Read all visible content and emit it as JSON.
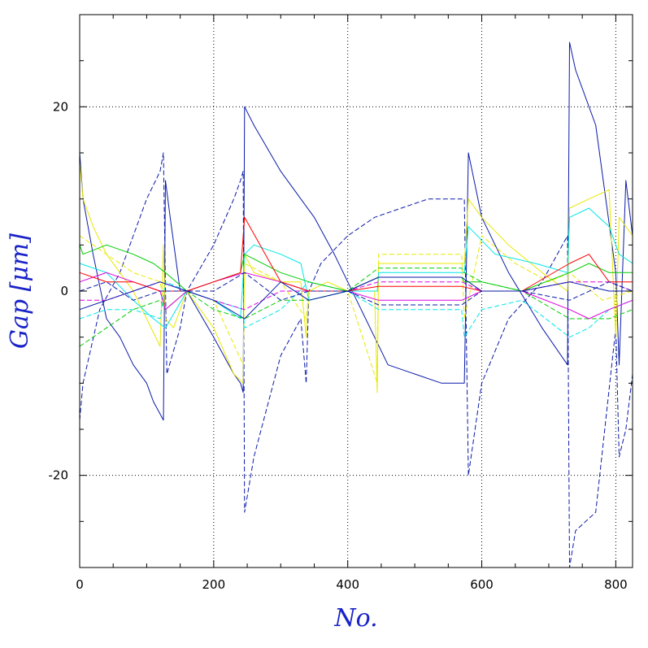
{
  "chart_data": {
    "type": "line",
    "xlabel": "No.",
    "ylabel": "Gap [μm]",
    "xlim": [
      0,
      825
    ],
    "ylim": [
      -30,
      30
    ],
    "x_ticks": [
      0,
      200,
      400,
      600,
      800
    ],
    "y_ticks": [
      -20,
      0,
      20
    ],
    "x_tick_labels": [
      "0",
      "200",
      "400",
      "600",
      "800"
    ],
    "y_tick_labels": [
      "-20",
      "0",
      "20"
    ],
    "grid": true,
    "legend": "none",
    "series": [
      {
        "color": "#0a1aa8",
        "style": "solid",
        "x": [
          0,
          5,
          20,
          40,
          60,
          80,
          100,
          110,
          125,
          128,
          135,
          150,
          160,
          200,
          230,
          240,
          244,
          246,
          260,
          300,
          330,
          350,
          380,
          420,
          460,
          500,
          540,
          570,
          574,
          580,
          600,
          640,
          690,
          728,
          731,
          740,
          770,
          800,
          805,
          815,
          825
        ],
        "y": [
          15,
          10,
          4,
          -3,
          -5,
          -8,
          -10,
          -12,
          -14,
          12,
          8,
          0,
          0,
          -5,
          -9,
          -10,
          -11,
          20,
          18,
          13,
          10,
          8,
          4,
          -2,
          -8,
          -9,
          -10,
          -10,
          -10,
          15,
          8,
          2,
          -4,
          -8,
          27,
          24,
          18,
          2,
          -8,
          12,
          6
        ]
      },
      {
        "color": "#0a1aa8",
        "style": "dashed",
        "x": [
          0,
          5,
          30,
          60,
          80,
          100,
          120,
          125,
          130,
          150,
          160,
          200,
          230,
          240,
          244,
          246,
          260,
          300,
          330,
          338,
          342,
          360,
          400,
          440,
          480,
          520,
          560,
          570,
          574,
          580,
          600,
          640,
          690,
          728,
          731,
          740,
          770,
          800,
          805,
          815,
          825
        ],
        "y": [
          -14,
          -10,
          -2,
          2,
          6,
          10,
          13,
          15,
          -9,
          -4,
          0,
          5,
          10,
          12,
          13,
          -24,
          -18,
          -7,
          -3,
          -10,
          0,
          3,
          6,
          8,
          9,
          10,
          10,
          10,
          10,
          -20,
          -10,
          -3,
          1,
          6,
          -30,
          -26,
          -24,
          -4,
          -18,
          -15,
          -9
        ]
      },
      {
        "color": "#e8e800",
        "style": "solid",
        "x": [
          0,
          5,
          20,
          40,
          60,
          80,
          100,
          120,
          125,
          128,
          140,
          160,
          200,
          230,
          244,
          246,
          260,
          300,
          330,
          338,
          342,
          370,
          400,
          440,
          444,
          446,
          480,
          520,
          570,
          574,
          580,
          600,
          640,
          690,
          728,
          731,
          760,
          790,
          800,
          805,
          825
        ],
        "y": [
          14,
          10,
          7,
          4,
          2,
          0,
          -3,
          -6,
          5,
          -3,
          -4,
          0,
          -4,
          -9,
          -10,
          4,
          2,
          1,
          1,
          -5,
          0,
          1,
          0,
          0,
          -11,
          3,
          3,
          3,
          3,
          3,
          10,
          8,
          5,
          2,
          0,
          9,
          10,
          11,
          -5,
          8,
          6
        ]
      },
      {
        "color": "#e8e800",
        "style": "dashed",
        "x": [
          0,
          40,
          80,
          120,
          128,
          160,
          200,
          244,
          246,
          300,
          338,
          342,
          400,
          444,
          446,
          500,
          570,
          574,
          600,
          650,
          700,
          731,
          780,
          825
        ],
        "y": [
          6,
          4,
          2,
          1,
          -2,
          0,
          -1,
          -8,
          3,
          1,
          -3,
          0,
          0,
          -10,
          4,
          4,
          4,
          -3,
          6,
          3,
          1,
          2,
          -1,
          0
        ]
      },
      {
        "color": "#00e6e6",
        "style": "solid",
        "x": [
          0,
          40,
          80,
          110,
          128,
          160,
          200,
          240,
          246,
          260,
          300,
          330,
          342,
          400,
          444,
          446,
          520,
          570,
          574,
          580,
          620,
          680,
          728,
          731,
          760,
          790,
          805,
          825
        ],
        "y": [
          3,
          2,
          -1,
          -3,
          -4,
          0,
          -1,
          -3,
          4,
          5,
          4,
          3,
          -1,
          0,
          0,
          2,
          2,
          2,
          2,
          7,
          4,
          3,
          2,
          8,
          9,
          7,
          4,
          3
        ]
      },
      {
        "color": "#00e6e6",
        "style": "dashed",
        "x": [
          0,
          40,
          80,
          120,
          128,
          160,
          200,
          244,
          246,
          300,
          342,
          400,
          446,
          520,
          570,
          574,
          600,
          660,
          731,
          760,
          790,
          825
        ],
        "y": [
          -3,
          -2,
          -2,
          -3,
          1,
          0,
          -1,
          -2,
          -4,
          -2,
          1,
          0,
          -2,
          -2,
          -2,
          -5,
          -2,
          -1,
          -5,
          -4,
          -2,
          -1
        ]
      },
      {
        "color": "#00cc00",
        "style": "solid",
        "x": [
          0,
          5,
          40,
          80,
          110,
          128,
          160,
          200,
          240,
          246,
          300,
          342,
          400,
          446,
          520,
          570,
          574,
          600,
          660,
          731,
          760,
          790,
          825
        ],
        "y": [
          5,
          4,
          5,
          4,
          3,
          2,
          0,
          1,
          2,
          4,
          2,
          1,
          0,
          1.5,
          1.5,
          1.5,
          1,
          1,
          0,
          2,
          3,
          2,
          2
        ]
      },
      {
        "color": "#00cc00",
        "style": "dashed",
        "x": [
          0,
          40,
          80,
          120,
          128,
          160,
          200,
          246,
          300,
          342,
          400,
          446,
          520,
          570,
          574,
          600,
          660,
          731,
          790,
          825
        ],
        "y": [
          -6,
          -4,
          -2,
          -1,
          -2,
          0,
          -2,
          -3,
          -1,
          -1,
          0,
          2.5,
          2.5,
          2.5,
          2,
          1,
          0,
          -3,
          -3,
          -2
        ]
      },
      {
        "color": "#e000e0",
        "style": "solid",
        "x": [
          0,
          40,
          80,
          120,
          128,
          160,
          200,
          246,
          300,
          342,
          400,
          446,
          520,
          570,
          600,
          660,
          731,
          760,
          790,
          825
        ],
        "y": [
          1,
          2,
          1,
          0,
          -2,
          0,
          1,
          2,
          1,
          0,
          0,
          -1,
          -1,
          -1,
          0,
          0,
          -2,
          -3,
          -2,
          -1
        ]
      },
      {
        "color": "#e000e0",
        "style": "dashed",
        "x": [
          0,
          40,
          80,
          120,
          160,
          200,
          246,
          300,
          342,
          400,
          446,
          520,
          570,
          600,
          660,
          731,
          790,
          825
        ],
        "y": [
          -1,
          -1,
          0,
          1,
          0,
          -1,
          -2,
          0,
          0,
          0,
          1,
          1,
          1,
          0,
          0,
          1,
          1,
          0
        ]
      },
      {
        "color": "#ff0000",
        "style": "solid",
        "x": [
          0,
          40,
          80,
          120,
          160,
          200,
          240,
          246,
          300,
          342,
          400,
          446,
          520,
          570,
          600,
          660,
          731,
          760,
          790,
          825
        ],
        "y": [
          2,
          1,
          1,
          0,
          0,
          1,
          2,
          8,
          1,
          0,
          0,
          0.5,
          0.5,
          0.5,
          0,
          0,
          3,
          4,
          1,
          1
        ]
      },
      {
        "color": "#0a1aa8",
        "style": "solid",
        "x": [
          0,
          40,
          80,
          120,
          160,
          200,
          246,
          300,
          342,
          400,
          446,
          520,
          570,
          600,
          660,
          731,
          790,
          825
        ],
        "y": [
          -2,
          -1,
          0,
          1,
          0,
          -1,
          -3,
          1,
          -1,
          0,
          1.5,
          1.5,
          1.5,
          0,
          0,
          1,
          0,
          0
        ]
      },
      {
        "color": "#0a1aa8",
        "style": "dashed",
        "x": [
          0,
          40,
          80,
          120,
          160,
          200,
          246,
          300,
          342,
          400,
          446,
          520,
          570,
          600,
          660,
          731,
          790,
          825
        ],
        "y": [
          0,
          1,
          -1,
          0,
          0,
          0,
          2,
          -1,
          0,
          0,
          -1.5,
          -1.5,
          -1.5,
          0,
          0,
          -1,
          1,
          0
        ]
      }
    ]
  }
}
